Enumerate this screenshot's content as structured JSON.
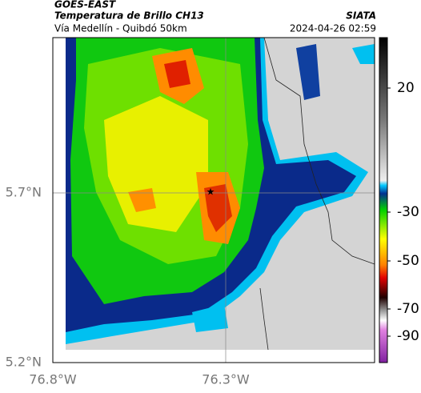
{
  "header": {
    "satellite": "GOES-EAST",
    "product": "Temperatura de Brillo CH13",
    "source": "SIATA",
    "route": "Vía Medellín - Quibdó 50km",
    "timestamp": "2024-04-26 02:59"
  },
  "axes": {
    "lat_labels": [
      "5.7°N",
      "5.2°N"
    ],
    "lon_labels": [
      "76.8°W",
      "76.3°W"
    ]
  },
  "colorbar": {
    "ticks": [
      20,
      -30,
      -50,
      -70,
      -90
    ]
  }
}
